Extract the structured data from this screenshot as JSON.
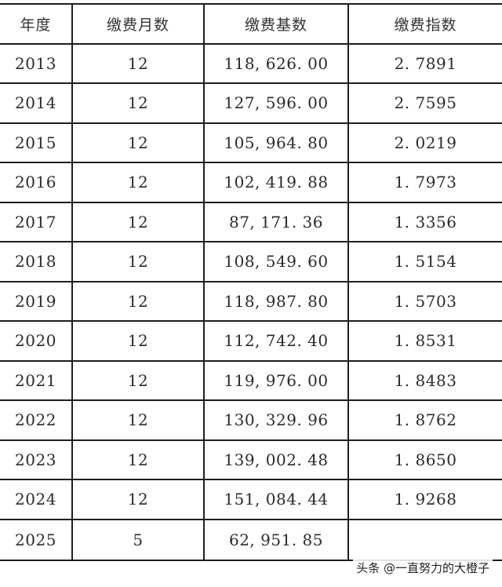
{
  "table": {
    "headers": [
      "年度",
      "缴费月数",
      "缴费基数",
      "缴费指数"
    ],
    "rows": [
      [
        "2013",
        "12",
        "118, 626. 00",
        "2. 7891"
      ],
      [
        "2014",
        "12",
        "127, 596. 00",
        "2. 7595"
      ],
      [
        "2015",
        "12",
        "105, 964. 80",
        "2. 0219"
      ],
      [
        "2016",
        "12",
        "102, 419. 88",
        "1. 7973"
      ],
      [
        "2017",
        "12",
        "87, 171. 36",
        "1. 3356"
      ],
      [
        "2018",
        "12",
        "108, 549. 60",
        "1. 5154"
      ],
      [
        "2019",
        "12",
        "118, 987. 80",
        "1. 5703"
      ],
      [
        "2020",
        "12",
        "112, 742. 40",
        "1. 8531"
      ],
      [
        "2021",
        "12",
        "119, 976. 00",
        "1. 8483"
      ],
      [
        "2022",
        "12",
        "130, 329. 96",
        "1. 8762"
      ],
      [
        "2023",
        "12",
        "139, 002. 48",
        "1. 8650"
      ],
      [
        "2024",
        "12",
        "151, 084. 44",
        "1. 9268"
      ],
      [
        "2025",
        "5",
        "62, 951. 85",
        ""
      ]
    ]
  },
  "watermark": "头条 @一直努力的大橙子"
}
